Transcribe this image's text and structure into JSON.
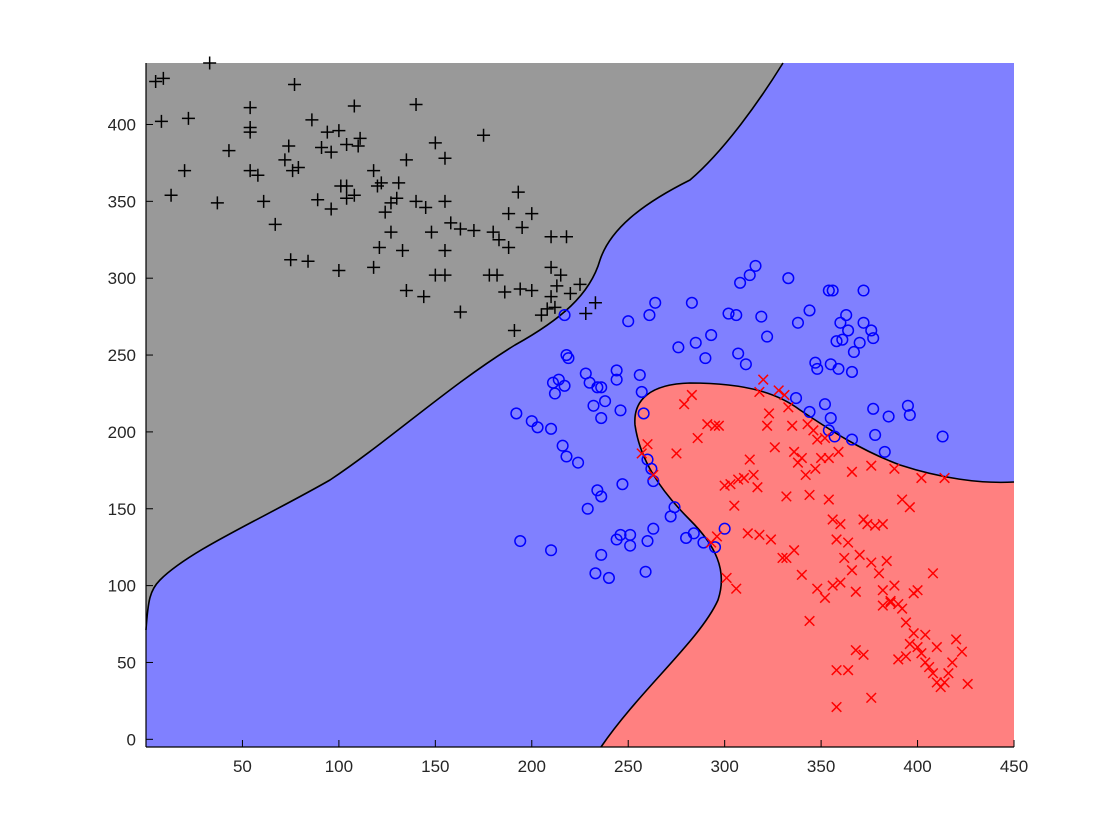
{
  "chart_data": {
    "type": "scatter",
    "title": "",
    "xlabel": "",
    "ylabel": "",
    "xlim": [
      0,
      450
    ],
    "ylim": [
      -5,
      440
    ],
    "xticks": [
      50,
      100,
      150,
      200,
      250,
      300,
      350,
      400,
      450
    ],
    "yticks": [
      0,
      50,
      100,
      150,
      200,
      250,
      300,
      350,
      400
    ],
    "grid": false,
    "legend": "none",
    "regions": [
      {
        "class": "plus",
        "color": "#999999"
      },
      {
        "class": "circle",
        "color": "#8080ff"
      },
      {
        "class": "cross",
        "color": "#ff8080"
      }
    ],
    "series": [
      {
        "marker": "+",
        "color": "#000000",
        "points": [
          [
            5,
            428
          ],
          [
            9,
            430
          ],
          [
            33,
            440
          ],
          [
            77,
            426
          ],
          [
            8,
            402
          ],
          [
            22,
            404
          ],
          [
            54,
            411
          ],
          [
            54,
            398
          ],
          [
            54,
            395
          ],
          [
            108,
            412
          ],
          [
            140,
            413
          ],
          [
            20,
            370
          ],
          [
            43,
            383
          ],
          [
            13,
            354
          ],
          [
            37,
            349
          ],
          [
            54,
            370
          ],
          [
            58,
            367
          ],
          [
            61,
            350
          ],
          [
            67,
            335
          ],
          [
            72,
            377
          ],
          [
            74,
            386
          ],
          [
            76,
            370
          ],
          [
            79,
            372
          ],
          [
            86,
            403
          ],
          [
            91,
            385
          ],
          [
            94,
            395
          ],
          [
            96,
            382
          ],
          [
            100,
            396
          ],
          [
            104,
            387
          ],
          [
            89,
            351
          ],
          [
            96,
            345
          ],
          [
            101,
            360
          ],
          [
            104,
            360
          ],
          [
            104,
            352
          ],
          [
            108,
            354
          ],
          [
            110,
            386
          ],
          [
            111,
            391
          ],
          [
            118,
            370
          ],
          [
            120,
            360
          ],
          [
            122,
            362
          ],
          [
            124,
            343
          ],
          [
            127,
            349
          ],
          [
            130,
            352
          ],
          [
            131,
            362
          ],
          [
            135,
            377
          ],
          [
            140,
            350
          ],
          [
            145,
            346
          ],
          [
            148,
            330
          ],
          [
            150,
            388
          ],
          [
            155,
            378
          ],
          [
            155,
            350
          ],
          [
            158,
            336
          ],
          [
            163,
            332
          ],
          [
            170,
            331
          ],
          [
            175,
            393
          ],
          [
            180,
            330
          ],
          [
            183,
            325
          ],
          [
            188,
            342
          ],
          [
            193,
            356
          ],
          [
            188,
            320
          ],
          [
            195,
            333
          ],
          [
            200,
            342
          ],
          [
            210,
            327
          ],
          [
            218,
            327
          ],
          [
            210,
            307
          ],
          [
            215,
            302
          ],
          [
            213,
            295
          ],
          [
            210,
            288
          ],
          [
            220,
            290
          ],
          [
            225,
            296
          ],
          [
            228,
            277
          ],
          [
            233,
            284
          ],
          [
            75,
            312
          ],
          [
            84,
            311
          ],
          [
            100,
            305
          ],
          [
            118,
            307
          ],
          [
            121,
            320
          ],
          [
            127,
            330
          ],
          [
            133,
            318
          ],
          [
            135,
            292
          ],
          [
            144,
            288
          ],
          [
            150,
            302
          ],
          [
            155,
            318
          ],
          [
            155,
            302
          ],
          [
            163,
            278
          ],
          [
            178,
            302
          ],
          [
            182,
            302
          ],
          [
            186,
            291
          ],
          [
            191,
            266
          ],
          [
            194,
            293
          ],
          [
            200,
            292
          ],
          [
            205,
            276
          ],
          [
            212,
            281
          ],
          [
            208,
            280
          ]
        ]
      },
      {
        "marker": "o",
        "color": "#0000ff",
        "points": [
          [
            217,
            276
          ],
          [
            218,
            250
          ],
          [
            219,
            248
          ],
          [
            211,
            232
          ],
          [
            212,
            225
          ],
          [
            214,
            234
          ],
          [
            217,
            230
          ],
          [
            230,
            232
          ],
          [
            228,
            238
          ],
          [
            234,
            229
          ],
          [
            236,
            229
          ],
          [
            244,
            240
          ],
          [
            244,
            234
          ],
          [
            250,
            272
          ],
          [
            256,
            237
          ],
          [
            261,
            276
          ],
          [
            264,
            284
          ],
          [
            276,
            255
          ],
          [
            285,
            258
          ],
          [
            283,
            284
          ],
          [
            290,
            248
          ],
          [
            293,
            263
          ],
          [
            302,
            277
          ],
          [
            306,
            276
          ],
          [
            307,
            251
          ],
          [
            308,
            297
          ],
          [
            313,
            302
          ],
          [
            316,
            308
          ],
          [
            311,
            244
          ],
          [
            319,
            275
          ],
          [
            322,
            262
          ],
          [
            333,
            300
          ],
          [
            338,
            271
          ],
          [
            344,
            279
          ],
          [
            347,
            245
          ],
          [
            348,
            241
          ],
          [
            354,
            292
          ],
          [
            356,
            292
          ],
          [
            355,
            244
          ],
          [
            358,
            259
          ],
          [
            359,
            241
          ],
          [
            360,
            271
          ],
          [
            361,
            260
          ],
          [
            363,
            276
          ],
          [
            364,
            266
          ],
          [
            366,
            239
          ],
          [
            367,
            252
          ],
          [
            370,
            258
          ],
          [
            372,
            271
          ],
          [
            372,
            292
          ],
          [
            376,
            266
          ],
          [
            377,
            261
          ],
          [
            192,
            212
          ],
          [
            200,
            207
          ],
          [
            203,
            203
          ],
          [
            210,
            202
          ],
          [
            216,
            191
          ],
          [
            218,
            184
          ],
          [
            224,
            180
          ],
          [
            232,
            217
          ],
          [
            236,
            209
          ],
          [
            238,
            220
          ],
          [
            246,
            214
          ],
          [
            257,
            226
          ],
          [
            258,
            212
          ],
          [
            260,
            182
          ],
          [
            262,
            176
          ],
          [
            263,
            168
          ],
          [
            247,
            166
          ],
          [
            234,
            162
          ],
          [
            236,
            158
          ],
          [
            229,
            150
          ],
          [
            246,
            133
          ],
          [
            244,
            130
          ],
          [
            251,
            133
          ],
          [
            251,
            126
          ],
          [
            260,
            129
          ],
          [
            263,
            137
          ],
          [
            272,
            145
          ],
          [
            274,
            151
          ],
          [
            280,
            131
          ],
          [
            284,
            134
          ],
          [
            289,
            128
          ],
          [
            295,
            125
          ],
          [
            300,
            137
          ],
          [
            194,
            129
          ],
          [
            210,
            123
          ],
          [
            233,
            108
          ],
          [
            236,
            120
          ],
          [
            240,
            105
          ],
          [
            259,
            109
          ],
          [
            337,
            222
          ],
          [
            344,
            213
          ],
          [
            352,
            218
          ],
          [
            354,
            201
          ],
          [
            355,
            209
          ],
          [
            357,
            197
          ],
          [
            366,
            195
          ],
          [
            377,
            215
          ],
          [
            378,
            198
          ],
          [
            383,
            187
          ],
          [
            385,
            210
          ],
          [
            395,
            217
          ],
          [
            396,
            211
          ],
          [
            413,
            197
          ]
        ]
      },
      {
        "marker": "x",
        "color": "#ff0000",
        "points": [
          [
            257,
            186
          ],
          [
            260,
            192
          ],
          [
            263,
            172
          ],
          [
            275,
            186
          ],
          [
            279,
            218
          ],
          [
            283,
            224
          ],
          [
            286,
            196
          ],
          [
            291,
            205
          ],
          [
            295,
            204
          ],
          [
            297,
            204
          ],
          [
            300,
            165
          ],
          [
            303,
            166
          ],
          [
            305,
            152
          ],
          [
            307,
            169
          ],
          [
            310,
            170
          ],
          [
            313,
            182
          ],
          [
            315,
            172
          ],
          [
            317,
            164
          ],
          [
            318,
            226
          ],
          [
            320,
            234
          ],
          [
            322,
            204
          ],
          [
            323,
            212
          ],
          [
            328,
            227
          ],
          [
            331,
            224
          ],
          [
            333,
            216
          ],
          [
            335,
            204
          ],
          [
            336,
            187
          ],
          [
            338,
            180
          ],
          [
            340,
            183
          ],
          [
            342,
            172
          ],
          [
            344,
            159
          ],
          [
            346,
            201
          ],
          [
            348,
            195
          ],
          [
            350,
            183
          ],
          [
            352,
            196
          ],
          [
            354,
            156
          ],
          [
            356,
            143
          ],
          [
            358,
            130
          ],
          [
            360,
            140
          ],
          [
            362,
            118
          ],
          [
            364,
            128
          ],
          [
            366,
            110
          ],
          [
            368,
            96
          ],
          [
            370,
            120
          ],
          [
            372,
            143
          ],
          [
            374,
            140
          ],
          [
            376,
            115
          ],
          [
            378,
            139
          ],
          [
            380,
            108
          ],
          [
            382,
            97
          ],
          [
            384,
            116
          ],
          [
            386,
            90
          ],
          [
            388,
            100
          ],
          [
            390,
            88
          ],
          [
            392,
            85
          ],
          [
            394,
            76
          ],
          [
            396,
            62
          ],
          [
            398,
            69
          ],
          [
            400,
            60
          ],
          [
            402,
            56
          ],
          [
            404,
            50
          ],
          [
            406,
            47
          ],
          [
            408,
            43
          ],
          [
            410,
            37
          ],
          [
            412,
            34
          ],
          [
            414,
            37
          ],
          [
            416,
            43
          ],
          [
            418,
            50
          ],
          [
            420,
            65
          ],
          [
            423,
            57
          ],
          [
            426,
            36
          ],
          [
            293,
            128
          ],
          [
            296,
            132
          ],
          [
            301,
            105
          ],
          [
            306,
            98
          ],
          [
            312,
            134
          ],
          [
            318,
            133
          ],
          [
            324,
            130
          ],
          [
            332,
            118
          ],
          [
            336,
            123
          ],
          [
            340,
            107
          ],
          [
            344,
            77
          ],
          [
            348,
            98
          ],
          [
            352,
            92
          ],
          [
            356,
            100
          ],
          [
            358,
            45
          ],
          [
            360,
            102
          ],
          [
            364,
            45
          ],
          [
            368,
            58
          ],
          [
            372,
            55
          ],
          [
            376,
            27
          ],
          [
            382,
            87
          ],
          [
            386,
            89
          ],
          [
            390,
            52
          ],
          [
            394,
            54
          ],
          [
            398,
            95
          ],
          [
            400,
            97
          ],
          [
            404,
            68
          ],
          [
            408,
            108
          ],
          [
            410,
            60
          ],
          [
            414,
            170
          ],
          [
            326,
            190
          ],
          [
            332,
            158
          ],
          [
            343,
            205
          ],
          [
            347,
            176
          ],
          [
            354,
            183
          ],
          [
            359,
            187
          ],
          [
            366,
            174
          ],
          [
            376,
            178
          ],
          [
            382,
            140
          ],
          [
            388,
            176
          ],
          [
            392,
            156
          ],
          [
            396,
            151
          ],
          [
            402,
            170
          ],
          [
            358,
            21
          ],
          [
            330,
            118
          ]
        ]
      }
    ]
  }
}
